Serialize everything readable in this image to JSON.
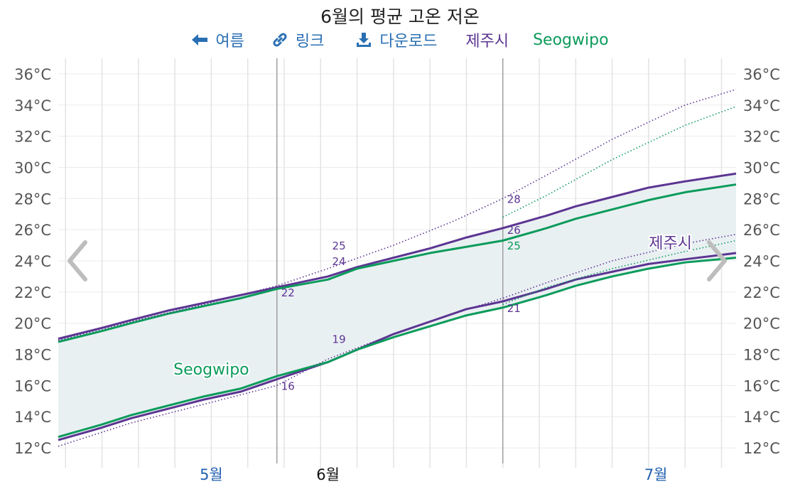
{
  "title": "6월의 평균 고온 저온",
  "toolbar": {
    "back_label": "여름",
    "link_label": "링크",
    "download_label": "다운로드"
  },
  "legend": {
    "jeju": "제주시",
    "seogwipo": "Seogwipo"
  },
  "colors": {
    "jeju": "#5c3592",
    "seogwipo": "#0b9b5b",
    "band": "#e9f0f2"
  },
  "chart_data": {
    "type": "line",
    "x_unit": "day",
    "xlim": [
      "2023-04-25",
      "2023-07-27"
    ],
    "ylim": [
      11,
      37
    ],
    "y_ticks": [
      "12°C",
      "14°C",
      "16°C",
      "18°C",
      "20°C",
      "22°C",
      "24°C",
      "26°C",
      "28°C",
      "30°C",
      "32°C",
      "34°C",
      "36°C"
    ],
    "y_tick_values": [
      12,
      14,
      16,
      18,
      20,
      22,
      24,
      26,
      28,
      30,
      32,
      34,
      36
    ],
    "x_labels": [
      {
        "date": "2023-05-16",
        "label": "5월"
      },
      {
        "date": "2023-06-01",
        "label": "6월"
      },
      {
        "date": "2023-07-16",
        "label": "7월"
      }
    ],
    "month_boundaries": [
      "2023-05-25",
      "2023-06-25"
    ],
    "grid": true,
    "series": [
      {
        "name": "제주시",
        "kind": "high",
        "style": "solid",
        "color": "#5c3592",
        "x": [
          "2023-04-25",
          "2023-05-01",
          "2023-05-05",
          "2023-05-10",
          "2023-05-15",
          "2023-05-20",
          "2023-05-25",
          "2023-06-01",
          "2023-06-05",
          "2023-06-10",
          "2023-06-15",
          "2023-06-20",
          "2023-06-25",
          "2023-07-01",
          "2023-07-05",
          "2023-07-10",
          "2023-07-15",
          "2023-07-20",
          "2023-07-27"
        ],
        "y": [
          19.0,
          19.7,
          20.2,
          20.8,
          21.3,
          21.8,
          22.3,
          23.0,
          23.6,
          24.2,
          24.8,
          25.5,
          26.1,
          26.9,
          27.5,
          28.1,
          28.7,
          29.1,
          29.6
        ]
      },
      {
        "name": "제주시",
        "kind": "low",
        "style": "solid",
        "color": "#5c3592",
        "x": [
          "2023-04-25",
          "2023-05-01",
          "2023-05-05",
          "2023-05-10",
          "2023-05-15",
          "2023-05-20",
          "2023-05-25",
          "2023-06-01",
          "2023-06-05",
          "2023-06-10",
          "2023-06-15",
          "2023-06-20",
          "2023-06-25",
          "2023-07-01",
          "2023-07-05",
          "2023-07-10",
          "2023-07-15",
          "2023-07-20",
          "2023-07-27"
        ],
        "y": [
          12.5,
          13.3,
          13.9,
          14.5,
          15.1,
          15.6,
          16.4,
          17.5,
          18.3,
          19.3,
          20.1,
          20.9,
          21.4,
          22.2,
          22.8,
          23.3,
          23.8,
          24.1,
          24.5
        ]
      },
      {
        "name": "Seogwipo",
        "kind": "high",
        "style": "solid",
        "color": "#0b9b5b",
        "x": [
          "2023-04-25",
          "2023-05-01",
          "2023-05-05",
          "2023-05-10",
          "2023-05-15",
          "2023-05-20",
          "2023-05-25",
          "2023-06-01",
          "2023-06-05",
          "2023-06-10",
          "2023-06-15",
          "2023-06-20",
          "2023-06-25",
          "2023-07-01",
          "2023-07-05",
          "2023-07-10",
          "2023-07-15",
          "2023-07-20",
          "2023-07-27"
        ],
        "y": [
          18.8,
          19.5,
          20.0,
          20.6,
          21.1,
          21.6,
          22.2,
          22.8,
          23.5,
          24.0,
          24.5,
          24.9,
          25.3,
          26.1,
          26.7,
          27.3,
          27.9,
          28.4,
          28.9
        ]
      },
      {
        "name": "Seogwipo",
        "kind": "low",
        "style": "solid",
        "color": "#0b9b5b",
        "x": [
          "2023-04-25",
          "2023-05-01",
          "2023-05-05",
          "2023-05-10",
          "2023-05-15",
          "2023-05-20",
          "2023-05-25",
          "2023-06-01",
          "2023-06-05",
          "2023-06-10",
          "2023-06-15",
          "2023-06-20",
          "2023-06-25",
          "2023-07-01",
          "2023-07-05",
          "2023-07-10",
          "2023-07-15",
          "2023-07-20",
          "2023-07-27"
        ],
        "y": [
          12.7,
          13.5,
          14.1,
          14.7,
          15.3,
          15.8,
          16.6,
          17.5,
          18.3,
          19.1,
          19.8,
          20.5,
          21.0,
          21.8,
          22.4,
          23.0,
          23.5,
          23.9,
          24.2
        ]
      },
      {
        "name": "제주시",
        "kind": "high-dotted",
        "style": "dotted",
        "color": "#5c3592",
        "x": [
          "2023-04-25",
          "2023-05-05",
          "2023-05-15",
          "2023-05-25",
          "2023-06-01",
          "2023-06-10",
          "2023-06-18",
          "2023-06-25",
          "2023-07-01",
          "2023-07-10",
          "2023-07-20",
          "2023-07-27"
        ],
        "y": [
          18.9,
          20.1,
          21.2,
          22.4,
          23.5,
          25.0,
          26.5,
          28.0,
          29.5,
          31.8,
          34.0,
          35.0
        ]
      },
      {
        "name": "제주시",
        "kind": "low-dotted",
        "style": "dotted",
        "color": "#5c3592",
        "x": [
          "2023-04-25",
          "2023-05-05",
          "2023-05-15",
          "2023-05-25",
          "2023-06-01",
          "2023-06-10",
          "2023-06-18",
          "2023-06-25",
          "2023-07-01",
          "2023-07-10",
          "2023-07-20",
          "2023-07-27"
        ],
        "y": [
          12.1,
          13.6,
          14.8,
          16.0,
          17.7,
          19.3,
          20.6,
          21.6,
          22.6,
          24.0,
          25.1,
          25.7
        ]
      },
      {
        "name": "Seogwipo",
        "kind": "high-dotted",
        "style": "dotted",
        "color": "#0b9b5b",
        "x": [
          "2023-06-25",
          "2023-07-01",
          "2023-07-10",
          "2023-07-20",
          "2023-07-27"
        ],
        "y": [
          26.8,
          28.2,
          30.5,
          32.7,
          33.9
        ]
      },
      {
        "name": "Seogwipo",
        "kind": "low-dotted",
        "style": "dotted",
        "color": "#0b9b5b",
        "x": [
          "2023-06-25",
          "2023-07-01",
          "2023-07-10",
          "2023-07-20",
          "2023-07-27"
        ],
        "y": [
          21.2,
          22.3,
          23.5,
          24.6,
          25.3
        ]
      }
    ],
    "data_labels": [
      {
        "date": "2023-05-25",
        "value": 22,
        "text": "22",
        "color": "#5c3592"
      },
      {
        "date": "2023-05-25",
        "value": 16,
        "text": "16",
        "color": "#5c3592"
      },
      {
        "date": "2023-06-01",
        "value": 25,
        "text": "25",
        "color": "#5c3592"
      },
      {
        "date": "2023-06-01",
        "value": 24,
        "text": "24",
        "color": "#5c3592"
      },
      {
        "date": "2023-06-01",
        "value": 19,
        "text": "19",
        "color": "#5c3592"
      },
      {
        "date": "2023-06-25",
        "value": 28,
        "text": "28",
        "color": "#5c3592"
      },
      {
        "date": "2023-06-25",
        "value": 26,
        "text": "26",
        "color": "#5c3592"
      },
      {
        "date": "2023-06-25",
        "value": 25,
        "text": "25",
        "color": "#0b9b5b"
      },
      {
        "date": "2023-06-25",
        "value": 21,
        "text": "21",
        "color": "#5c3592"
      }
    ],
    "series_labels": [
      {
        "text": "제주시",
        "date": "2023-07-18",
        "value": 24.8,
        "color": "#5c3592"
      },
      {
        "text": "Seogwipo",
        "date": "2023-05-16",
        "value": 16.7,
        "color": "#0b9b5b"
      }
    ]
  }
}
